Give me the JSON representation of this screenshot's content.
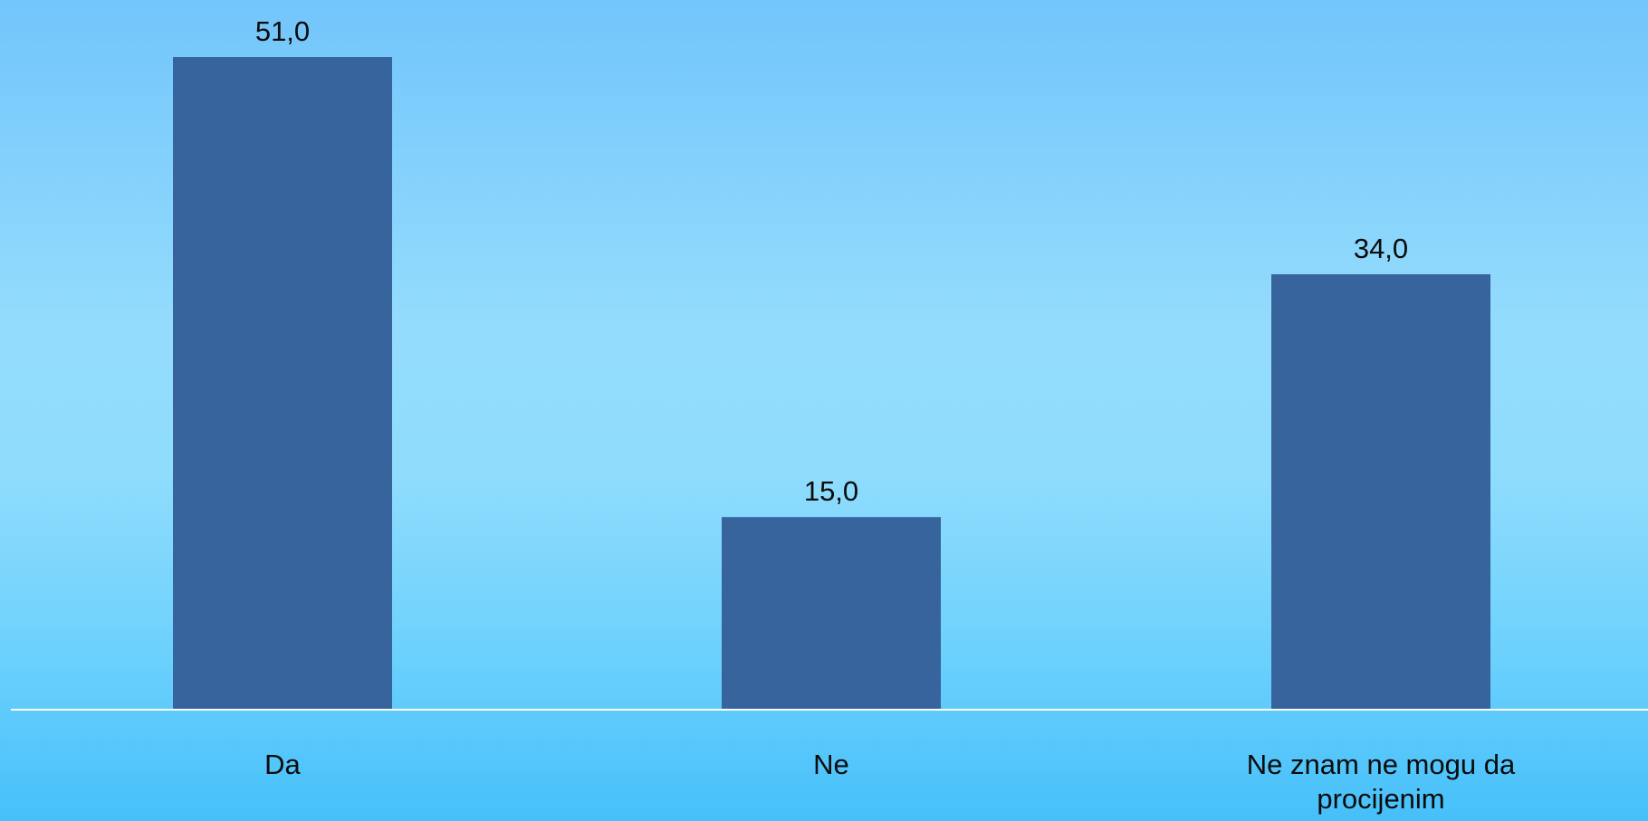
{
  "colors": {
    "bar": "#37649c",
    "axis": "#ffffff",
    "text": "#0b0b0b"
  },
  "chart_data": {
    "type": "bar",
    "categories": [
      "Da",
      "Ne",
      "Ne znam ne mogu da procijenim"
    ],
    "values": [
      51.0,
      15.0,
      34.0
    ],
    "data_labels": [
      "51,0",
      "15,0",
      "34,0"
    ],
    "ylim": [
      0,
      51
    ],
    "grid": false,
    "legend": "none"
  }
}
